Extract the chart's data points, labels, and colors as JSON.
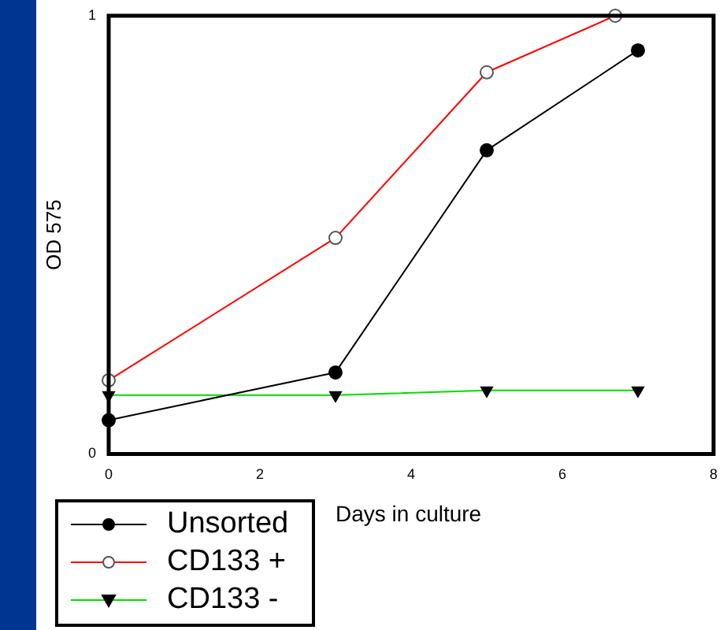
{
  "chart_data": {
    "type": "line",
    "xlabel": "Days in culture",
    "ylabel": "OD 575",
    "xlim": [
      0,
      8
    ],
    "xticks": [
      0,
      2,
      4,
      6,
      8
    ],
    "ylim": [
      0,
      1
    ],
    "yticks": [
      0,
      1
    ],
    "grid": false,
    "legend": "bottom left",
    "line_style": "solid",
    "series": [
      {
        "name": "Unsorted",
        "color": "#000000",
        "marker": "circle",
        "x": [
          0,
          3,
          5,
          7
        ],
        "values": [
          0.077,
          0.186,
          0.693,
          0.921
        ]
      },
      {
        "name": "CD133 +",
        "color": "#ff0000",
        "marker": "circle",
        "x": [
          0,
          3,
          5,
          6.7
        ],
        "values": [
          0.168,
          0.493,
          0.871,
          1.0
        ]
      },
      {
        "name": "CD133 -",
        "color": "#00dd00",
        "marker": "triangle",
        "x": [
          0,
          3,
          5,
          7
        ],
        "values": [
          0.134,
          0.134,
          0.145,
          0.145
        ]
      }
    ]
  }
}
